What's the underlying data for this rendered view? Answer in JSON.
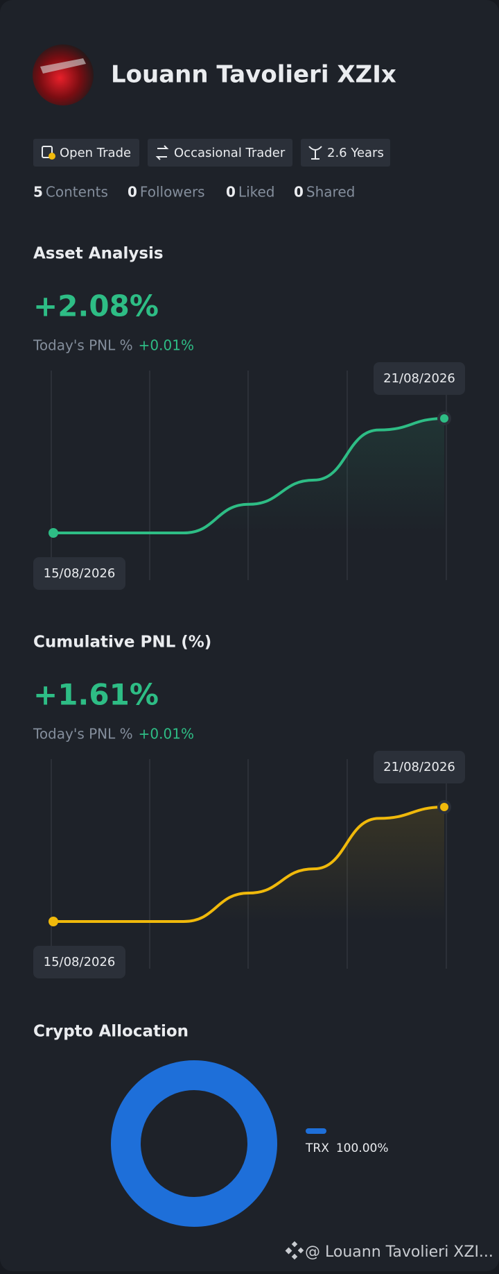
{
  "profile": {
    "name": "Louann Tavolieri XZIx"
  },
  "tags": [
    "Open Trade",
    "Occasional Trader",
    "2.6 Years"
  ],
  "stats": [
    {
      "value": 5,
      "label": "Contents"
    },
    {
      "value": 0,
      "label": "Followers"
    },
    {
      "value": 0,
      "label": "Liked"
    },
    {
      "value": 0,
      "label": "Shared"
    }
  ],
  "charts": [
    {
      "type": "line",
      "title": "Asset Analysis",
      "headline": "+2.08%",
      "pnl_label": "Today's PNL %",
      "pnl_value": "+0.01%",
      "color": "#2ebd85",
      "start_label": "15/08/2026",
      "end_label": "21/08/2026",
      "values": [
        0,
        0,
        0,
        0.52,
        0.96,
        1.87,
        2.08
      ]
    },
    {
      "type": "line",
      "title": "Cumulative PNL (%)",
      "headline": "+1.61%",
      "pnl_label": "Today's PNL %",
      "pnl_value": "+0.01%",
      "color": "#f0b90b",
      "start_label": "15/08/2026",
      "end_label": "21/08/2026",
      "values": [
        0,
        0,
        0,
        0.4,
        0.74,
        1.45,
        1.61
      ]
    }
  ],
  "allocation": {
    "type": "pie",
    "title": "Crypto Allocation",
    "categories": [
      "TRX"
    ],
    "values": [
      100
    ],
    "value_labels": [
      "100.00%"
    ],
    "colors": [
      "#1e6fd9"
    ]
  },
  "watermark": "@ Louann Tavolieri XZI..."
}
